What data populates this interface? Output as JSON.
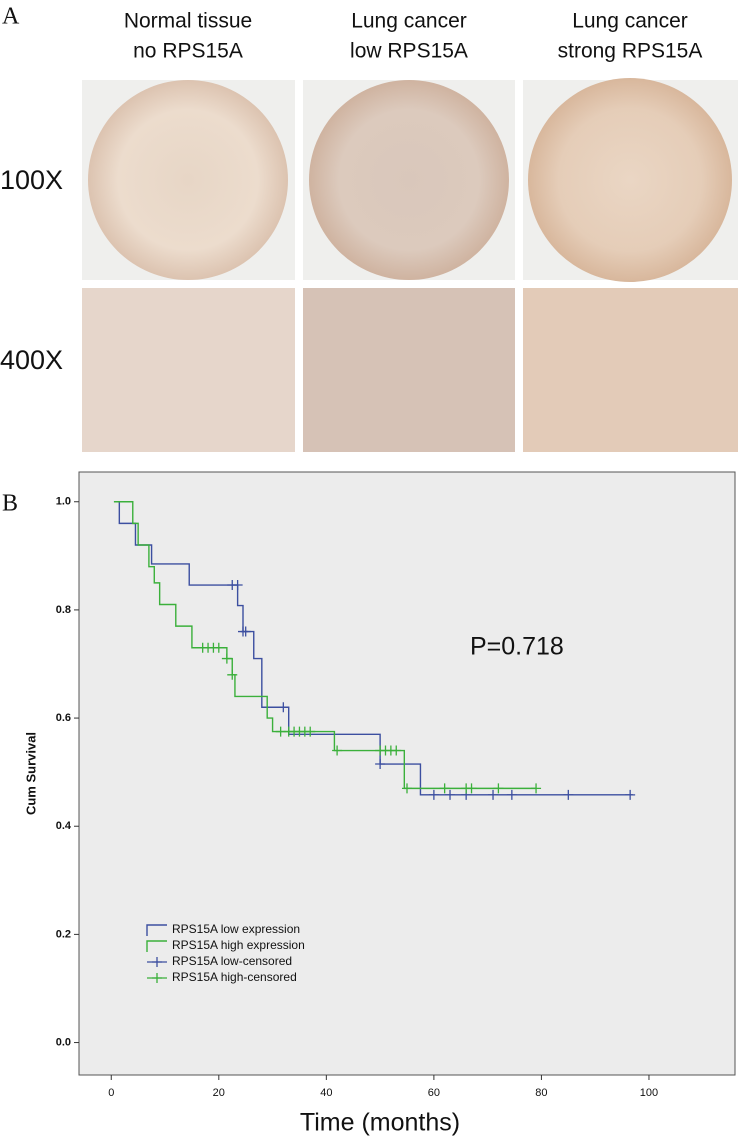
{
  "panel_a": {
    "label": "A",
    "columns": [
      [
        "Normal tissue",
        "no RPS15A"
      ],
      [
        "Lung cancer",
        "low RPS15A"
      ],
      [
        "Lung cancer",
        "strong RPS15A"
      ]
    ],
    "rows": [
      "100X",
      "400X"
    ]
  },
  "chart_data": {
    "type": "step",
    "panel_label": "B",
    "ylabel": "Cum Survival",
    "xlabel": "Time (months)",
    "annotation": "P=0.718",
    "xlim": [
      -6,
      116
    ],
    "ylim": [
      -0.06,
      1.055
    ],
    "xticks": [
      0,
      20,
      40,
      60,
      80,
      100
    ],
    "yticks": [
      {
        "value": 0,
        "label": "0.0"
      },
      {
        "value": 0.2,
        "label": "0.2"
      },
      {
        "value": 0.4,
        "label": "0.4"
      },
      {
        "value": 0.6,
        "label": "0.6"
      },
      {
        "value": 0.8,
        "label": "0.8"
      },
      {
        "value": 1,
        "label": "1.0"
      }
    ],
    "series": [
      {
        "name": "RPS15A low expression",
        "color": "#3c4fa0",
        "kind": "line",
        "x": [
          0.5,
          1.5,
          4.5,
          7.5,
          14.5,
          23.5,
          24.5,
          26.5,
          28,
          33,
          50,
          57.5,
          97
        ],
        "values": [
          1,
          0.96,
          0.92,
          0.885,
          0.846,
          0.808,
          0.76,
          0.71,
          0.62,
          0.57,
          0.515,
          0.458,
          0.458
        ]
      },
      {
        "name": "RPS15A high expression",
        "color": "#3bb03b",
        "kind": "line",
        "x": [
          0.5,
          4,
          5,
          7,
          8,
          9,
          12,
          15,
          21.5,
          22.5,
          23,
          29,
          30,
          41.5,
          54.5,
          79
        ],
        "values": [
          1,
          0.96,
          0.92,
          0.88,
          0.85,
          0.81,
          0.77,
          0.73,
          0.71,
          0.68,
          0.64,
          0.6,
          0.575,
          0.54,
          0.47,
          0.47
        ]
      },
      {
        "name": "RPS15A low-censored",
        "color": "#3c4fa0",
        "kind": "censor",
        "x": [
          22.5,
          23.5,
          24.5,
          25,
          32,
          50,
          60,
          63,
          66,
          71,
          74.5,
          85,
          96.5
        ],
        "values": [
          0.846,
          0.846,
          0.76,
          0.76,
          0.62,
          0.515,
          0.458,
          0.458,
          0.458,
          0.458,
          0.458,
          0.458,
          0.458
        ]
      },
      {
        "name": "RPS15A high-censored",
        "color": "#3bb03b",
        "kind": "censor",
        "x": [
          17,
          18,
          19,
          20,
          21.5,
          22.5,
          31.5,
          33,
          34,
          35,
          36,
          37,
          42,
          50,
          51,
          52,
          53,
          55,
          62,
          66,
          67,
          72,
          79
        ],
        "values": [
          0.73,
          0.73,
          0.73,
          0.73,
          0.71,
          0.68,
          0.575,
          0.575,
          0.575,
          0.575,
          0.575,
          0.575,
          0.54,
          0.54,
          0.54,
          0.54,
          0.54,
          0.47,
          0.47,
          0.47,
          0.47,
          0.47,
          0.47
        ]
      }
    ]
  }
}
